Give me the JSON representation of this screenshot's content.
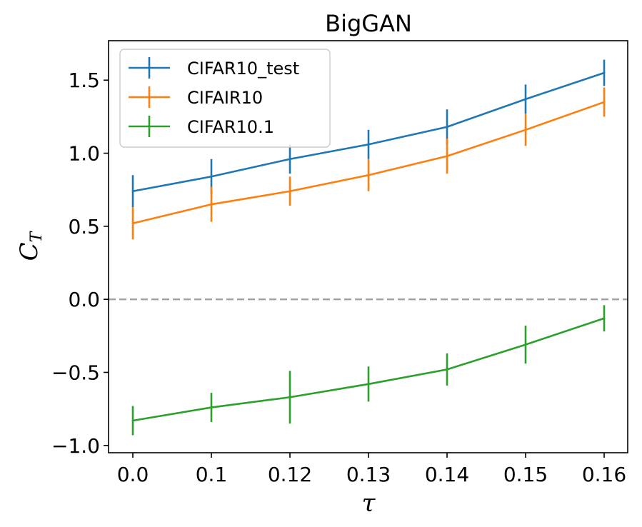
{
  "chart_data": {
    "type": "line",
    "title": "BigGAN",
    "xlabel": "τ",
    "ylabel": "C",
    "ylabel_sub": "T",
    "categories": [
      "0.0",
      "0.1",
      "0.12",
      "0.13",
      "0.14",
      "0.15",
      "0.16"
    ],
    "ylim": [
      -1.05,
      1.77
    ],
    "yticks": [
      -1.0,
      -0.5,
      0.0,
      0.5,
      1.0,
      1.5
    ],
    "ytick_labels": [
      "−1.0",
      "−0.5",
      "0.0",
      "0.5",
      "1.0",
      "1.5"
    ],
    "grid": false,
    "legend_position": "top-left",
    "reference_line": {
      "y": 0.0,
      "style": "dashed",
      "color": "#a0a0a0"
    },
    "series": [
      {
        "name": "CIFAR10_test",
        "color": "#1f77b4",
        "values": [
          0.74,
          0.84,
          0.96,
          1.06,
          1.18,
          1.37,
          1.55
        ],
        "errors": [
          0.11,
          0.12,
          0.1,
          0.1,
          0.12,
          0.1,
          0.09
        ]
      },
      {
        "name": "CIFAIR10",
        "color": "#ff7f0e",
        "values": [
          0.52,
          0.65,
          0.74,
          0.85,
          0.98,
          1.16,
          1.35
        ],
        "errors": [
          0.11,
          0.12,
          0.1,
          0.11,
          0.12,
          0.11,
          0.1
        ]
      },
      {
        "name": "CIFAR10.1",
        "color": "#2ca02c",
        "values": [
          -0.83,
          -0.74,
          -0.67,
          -0.58,
          -0.48,
          -0.31,
          -0.13
        ],
        "errors": [
          0.1,
          0.1,
          0.18,
          0.12,
          0.11,
          0.13,
          0.09
        ]
      }
    ]
  }
}
